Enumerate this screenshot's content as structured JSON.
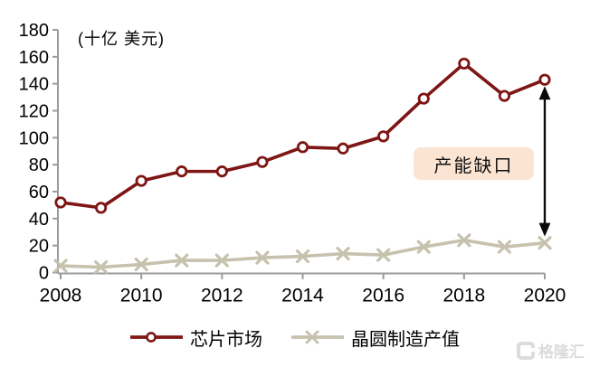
{
  "chart_data": {
    "type": "line",
    "unit_label": "(十亿 美元)",
    "years": [
      2008,
      2009,
      2010,
      2011,
      2012,
      2013,
      2014,
      2015,
      2016,
      2017,
      2018,
      2019,
      2020
    ],
    "x_tick_labels": [
      "2008",
      "2010",
      "2012",
      "2014",
      "2016",
      "2018",
      "2020"
    ],
    "y_ticks": [
      0,
      20,
      40,
      60,
      80,
      100,
      120,
      140,
      160,
      180
    ],
    "ylim": [
      0,
      180
    ],
    "grid": false,
    "legend_position": "bottom-center",
    "axis_color": "#9b9b9b",
    "series": [
      {
        "name": "芯片市场",
        "marker": "circle",
        "color": "#7d1614",
        "values": [
          52,
          48,
          68,
          75,
          75,
          82,
          93,
          92,
          101,
          129,
          155,
          131,
          143
        ]
      },
      {
        "name": "晶圆制造产值",
        "marker": "x",
        "color": "#c6c2ae",
        "values": [
          5,
          4,
          6,
          9,
          9,
          11,
          12,
          14,
          13,
          19,
          24,
          19,
          22
        ]
      }
    ],
    "annotation": {
      "label": "产能缺口",
      "box_color": "#fce4d2",
      "arrow_color": "#0a0a0a",
      "arrow_year": 2020
    }
  },
  "watermark": {
    "logo_letter": "G",
    "text": "格隆汇",
    "color": "#dcdcdc"
  }
}
